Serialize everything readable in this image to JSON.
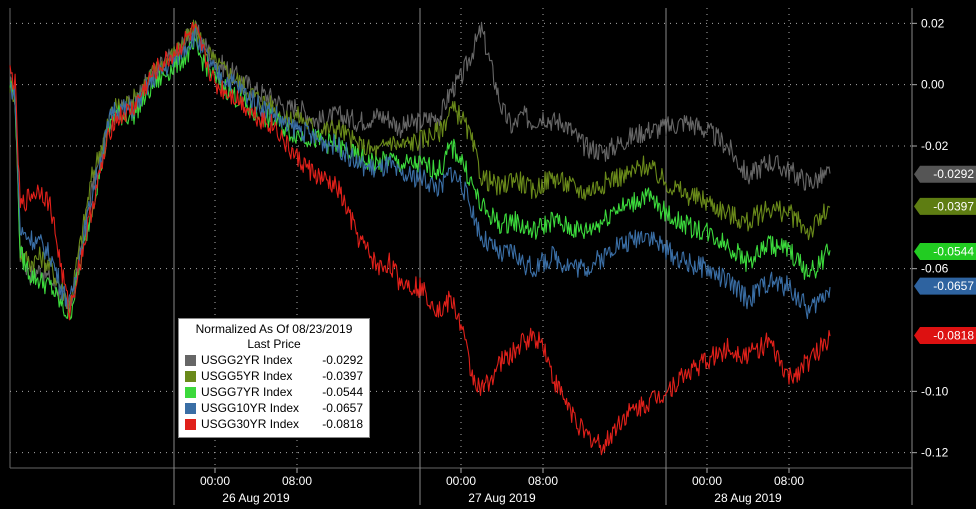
{
  "chart_data": {
    "type": "line",
    "legend": {
      "title": "Normalized As Of 08/23/2019",
      "subtitle": "Last Price",
      "placement": "bottom-left"
    },
    "ylim": [
      -0.125,
      0.025
    ],
    "yticks": [
      0.02,
      0.0,
      -0.02,
      -0.06,
      -0.1,
      -0.12
    ],
    "ytick_labels": [
      "0.02",
      "0.00",
      "-0.02",
      "-0.06",
      "-0.10",
      "-0.12"
    ],
    "xticks": [
      {
        "t": 20,
        "label": "00:00"
      },
      {
        "t": 28,
        "label": "08:00"
      },
      {
        "t": 44,
        "label": "00:00"
      },
      {
        "t": 52,
        "label": "08:00"
      },
      {
        "t": 68,
        "label": "00:00"
      },
      {
        "t": 76,
        "label": "08:00"
      }
    ],
    "date_labels": [
      {
        "t": 24,
        "label": "26 Aug 2019"
      },
      {
        "t": 48,
        "label": "27 Aug 2019"
      },
      {
        "t": 72,
        "label": "28 Aug 2019"
      }
    ],
    "grid": true,
    "series": [
      {
        "name": "USGG2YR Index",
        "last": "-0.0292",
        "color": "#666666",
        "label_color": "#555555",
        "x": [
          0,
          0.5,
          1,
          2,
          3,
          4,
          5,
          5.8,
          8,
          10,
          12,
          14,
          16,
          18,
          20,
          22,
          24,
          26,
          27,
          28,
          30,
          32,
          34,
          36,
          37,
          38,
          40,
          42,
          43,
          44,
          45,
          46,
          48,
          49,
          50,
          51,
          52,
          53,
          54,
          56,
          58,
          59,
          60,
          62,
          64,
          66,
          68,
          70,
          72,
          74,
          76,
          78,
          80
        ],
        "y": [
          0.0,
          -0.004,
          -0.055,
          -0.062,
          -0.06,
          -0.064,
          -0.068,
          -0.074,
          -0.034,
          -0.01,
          -0.006,
          0.004,
          0.01,
          0.018,
          0.008,
          0.003,
          -0.002,
          -0.005,
          -0.008,
          -0.007,
          -0.012,
          -0.01,
          -0.012,
          -0.01,
          -0.011,
          -0.014,
          -0.012,
          -0.01,
          -0.002,
          0.002,
          0.01,
          0.018,
          -0.008,
          -0.014,
          -0.01,
          -0.012,
          -0.01,
          -0.012,
          -0.012,
          -0.02,
          -0.022,
          -0.02,
          -0.018,
          -0.015,
          -0.014,
          -0.012,
          -0.015,
          -0.02,
          -0.03,
          -0.025,
          -0.028,
          -0.032,
          -0.029
        ]
      },
      {
        "name": "USGG5YR Index",
        "last": "-0.0397",
        "color": "#6a8a1a",
        "label_color": "#5e7d12",
        "x": [
          0,
          0.5,
          1,
          2,
          3,
          4,
          5,
          5.8,
          8,
          10,
          12,
          14,
          16,
          18,
          20,
          22,
          24,
          26,
          27,
          28,
          30,
          32,
          34,
          36,
          37,
          38,
          40,
          42,
          43,
          44,
          45,
          46,
          48,
          49,
          50,
          51,
          52,
          53,
          54,
          56,
          58,
          59,
          60,
          62,
          64,
          66,
          68,
          70,
          72,
          74,
          76,
          78,
          80
        ],
        "y": [
          0.0,
          -0.004,
          -0.055,
          -0.058,
          -0.056,
          -0.06,
          -0.066,
          -0.072,
          -0.03,
          -0.008,
          -0.005,
          0.004,
          0.01,
          0.018,
          0.007,
          0.002,
          -0.004,
          -0.008,
          -0.012,
          -0.01,
          -0.015,
          -0.014,
          -0.02,
          -0.022,
          -0.018,
          -0.02,
          -0.018,
          -0.015,
          -0.008,
          -0.01,
          -0.018,
          -0.03,
          -0.034,
          -0.03,
          -0.032,
          -0.035,
          -0.032,
          -0.03,
          -0.032,
          -0.035,
          -0.032,
          -0.03,
          -0.03,
          -0.026,
          -0.032,
          -0.036,
          -0.038,
          -0.042,
          -0.045,
          -0.04,
          -0.042,
          -0.048,
          -0.04
        ]
      },
      {
        "name": "USGG7YR Index",
        "last": "-0.0544",
        "color": "#3cd93c",
        "label_color": "#22cc22",
        "x": [
          0,
          0.5,
          1,
          2,
          3,
          4,
          5,
          5.8,
          8,
          10,
          12,
          14,
          16,
          18,
          20,
          22,
          24,
          26,
          27,
          28,
          30,
          32,
          34,
          36,
          37,
          38,
          40,
          42,
          43,
          44,
          45,
          46,
          48,
          49,
          50,
          51,
          52,
          53,
          54,
          56,
          58,
          59,
          60,
          62,
          64,
          66,
          68,
          70,
          72,
          74,
          76,
          78,
          80
        ],
        "y": [
          0.0,
          -0.004,
          -0.055,
          -0.062,
          -0.064,
          -0.066,
          -0.072,
          -0.076,
          -0.04,
          -0.01,
          -0.01,
          0.0,
          0.006,
          0.012,
          0.002,
          -0.004,
          -0.01,
          -0.012,
          -0.015,
          -0.016,
          -0.018,
          -0.02,
          -0.024,
          -0.026,
          -0.024,
          -0.026,
          -0.026,
          -0.028,
          -0.02,
          -0.024,
          -0.032,
          -0.04,
          -0.046,
          -0.044,
          -0.046,
          -0.048,
          -0.046,
          -0.044,
          -0.046,
          -0.048,
          -0.044,
          -0.04,
          -0.04,
          -0.036,
          -0.042,
          -0.046,
          -0.048,
          -0.052,
          -0.058,
          -0.052,
          -0.054,
          -0.062,
          -0.054
        ]
      },
      {
        "name": "USGG10YR Index",
        "last": "-0.0657",
        "color": "#3a6ea5",
        "label_color": "#2e63a0",
        "x": [
          0,
          0.5,
          1,
          2,
          3,
          4,
          5,
          5.8,
          8,
          10,
          12,
          14,
          16,
          18,
          20,
          22,
          24,
          26,
          27,
          28,
          30,
          32,
          34,
          36,
          37,
          38,
          40,
          42,
          43,
          44,
          45,
          46,
          48,
          49,
          50,
          51,
          52,
          53,
          54,
          56,
          58,
          59,
          60,
          62,
          64,
          66,
          68,
          70,
          72,
          74,
          76,
          78,
          80
        ],
        "y": [
          0.0,
          -0.004,
          -0.048,
          -0.05,
          -0.052,
          -0.056,
          -0.066,
          -0.072,
          -0.036,
          -0.008,
          -0.008,
          0.002,
          0.008,
          0.016,
          0.004,
          0.0,
          -0.006,
          -0.01,
          -0.014,
          -0.014,
          -0.018,
          -0.02,
          -0.026,
          -0.028,
          -0.026,
          -0.03,
          -0.03,
          -0.034,
          -0.028,
          -0.032,
          -0.04,
          -0.05,
          -0.056,
          -0.054,
          -0.058,
          -0.06,
          -0.058,
          -0.056,
          -0.058,
          -0.06,
          -0.056,
          -0.052,
          -0.052,
          -0.048,
          -0.054,
          -0.058,
          -0.06,
          -0.064,
          -0.07,
          -0.064,
          -0.066,
          -0.074,
          -0.066
        ]
      },
      {
        "name": "USGG30YR Index",
        "last": "-0.0818",
        "color": "#e0201a",
        "label_color": "#dd1111",
        "x": [
          0,
          0.5,
          1,
          2,
          3,
          4,
          5,
          5.8,
          8,
          10,
          12,
          14,
          16,
          18,
          20,
          22,
          24,
          26,
          27,
          28,
          30,
          32,
          34,
          36,
          37,
          38,
          40,
          42,
          43,
          44,
          45,
          46,
          48,
          49,
          50,
          51,
          52,
          53,
          54,
          56,
          58,
          59,
          60,
          62,
          64,
          66,
          68,
          70,
          72,
          74,
          76,
          78,
          80
        ],
        "y": [
          0.004,
          0.0,
          -0.04,
          -0.036,
          -0.034,
          -0.04,
          -0.06,
          -0.074,
          -0.04,
          -0.012,
          -0.008,
          0.004,
          0.01,
          0.018,
          0.0,
          -0.004,
          -0.01,
          -0.014,
          -0.02,
          -0.024,
          -0.03,
          -0.034,
          -0.05,
          -0.06,
          -0.058,
          -0.064,
          -0.066,
          -0.074,
          -0.07,
          -0.078,
          -0.094,
          -0.1,
          -0.09,
          -0.088,
          -0.084,
          -0.082,
          -0.084,
          -0.096,
          -0.102,
          -0.114,
          -0.118,
          -0.112,
          -0.108,
          -0.104,
          -0.1,
          -0.094,
          -0.09,
          -0.086,
          -0.088,
          -0.084,
          -0.096,
          -0.09,
          -0.082
        ]
      }
    ]
  }
}
